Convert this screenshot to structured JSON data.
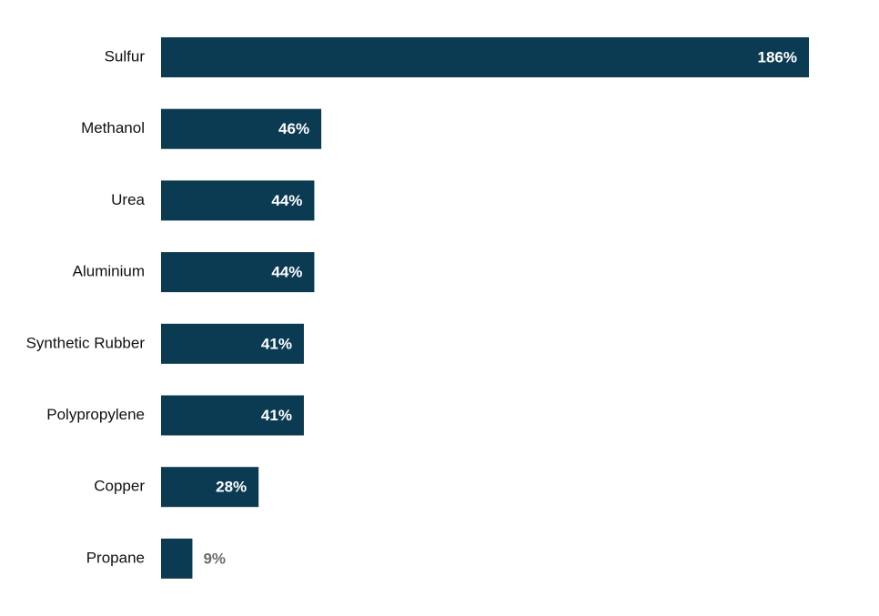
{
  "chart_data": {
    "type": "hbar",
    "categories": [
      "Sulfur",
      "Methanol",
      "Urea",
      "Aluminium",
      "Synthetic Rubber",
      "Polypropylene",
      "Copper",
      "Propane"
    ],
    "values": [
      186,
      46,
      44,
      44,
      41,
      41,
      28,
      9
    ],
    "value_labels": [
      "186%",
      "46%",
      "44%",
      "44%",
      "41%",
      "41%",
      "28%",
      "9%"
    ],
    "color": "#0b3a53"
  }
}
